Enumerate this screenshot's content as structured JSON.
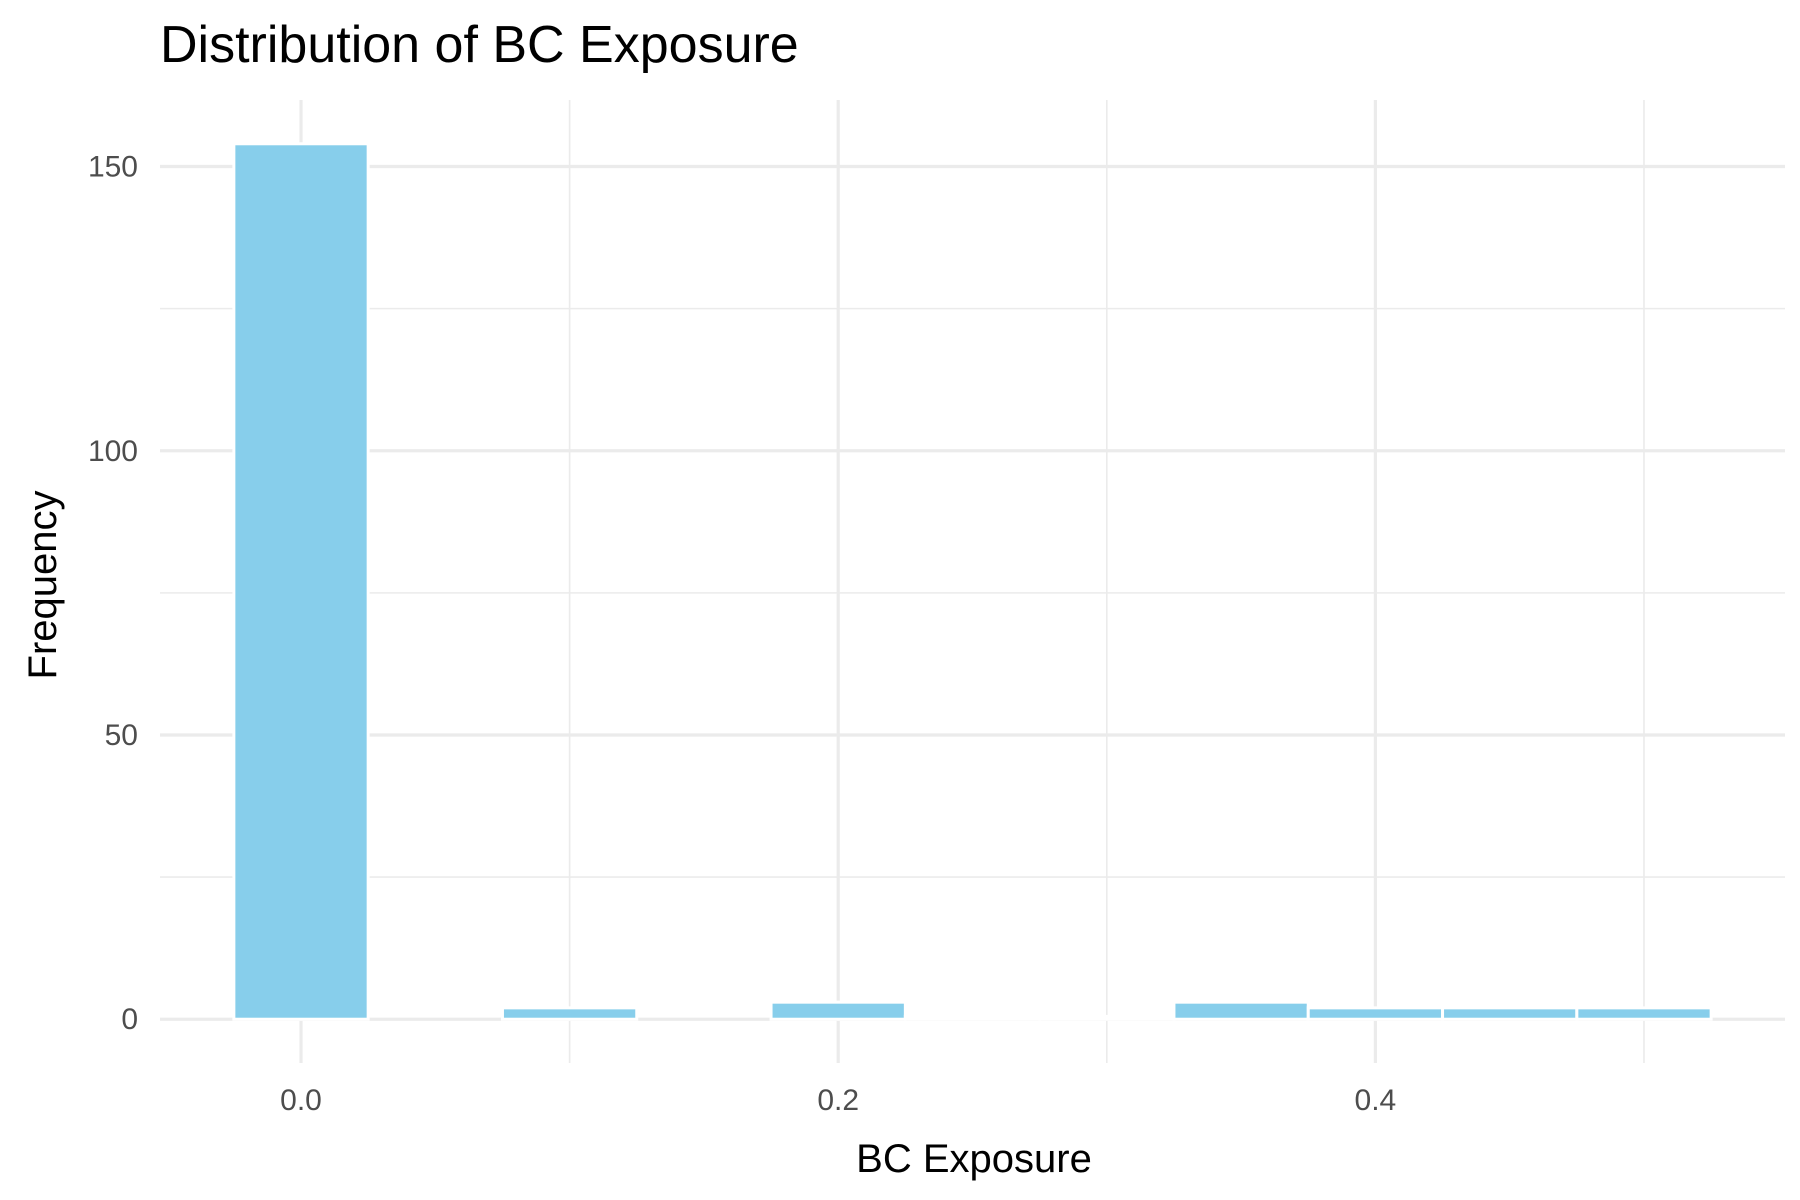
{
  "chart_data": {
    "type": "bar",
    "title": "Distribution of BC Exposure",
    "xlabel": "BC Exposure",
    "ylabel": "Frequency",
    "bar_color": "#87ceeb",
    "background": "#ffffff",
    "grid": true,
    "xlim": [
      -0.0525,
      0.5525
    ],
    "ylim": [
      -7.7,
      161.7
    ],
    "x_ticks": [
      0.0,
      0.2,
      0.4
    ],
    "x_tick_labels": [
      "0.0",
      "0.2",
      "0.4"
    ],
    "x_minor_ticks": [
      0.1,
      0.3,
      0.5
    ],
    "y_ticks": [
      0,
      50,
      100,
      150
    ],
    "y_tick_labels": [
      "0",
      "50",
      "100",
      "150"
    ],
    "y_minor_ticks": [
      25,
      75,
      125
    ],
    "bin_width": 0.05,
    "bins": [
      {
        "center": 0.0,
        "count": 154
      },
      {
        "center": 0.05,
        "count": 0
      },
      {
        "center": 0.1,
        "count": 2
      },
      {
        "center": 0.15,
        "count": 0
      },
      {
        "center": 0.2,
        "count": 3
      },
      {
        "center": 0.25,
        "count": 0.5
      },
      {
        "center": 0.3,
        "count": 0.5
      },
      {
        "center": 0.35,
        "count": 3
      },
      {
        "center": 0.4,
        "count": 2
      },
      {
        "center": 0.45,
        "count": 2
      },
      {
        "center": 0.5,
        "count": 2
      }
    ]
  }
}
